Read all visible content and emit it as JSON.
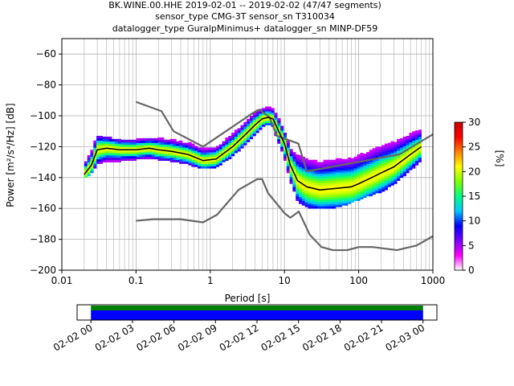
{
  "chart_data": [
    {
      "type": "heatmap",
      "title_lines": [
        "BK.WINE.00.HHE   2019-02-01 -- 2019-02-02  (47/47 segments)",
        "sensor_type CMG-3T sensor_sn T310034",
        "datalogger_type GuralpMinimus+ datalogger_sn MINP-DF59"
      ],
      "xlabel": "Period [s]",
      "ylabel": "Power [m²/s⁴/Hz] [dB]",
      "x_scale": "log",
      "xlim": [
        0.01,
        1000
      ],
      "ylim": [
        -200,
        -50
      ],
      "x_ticks": [
        {
          "value": 0.01,
          "label": "0.01"
        },
        {
          "value": 0.1,
          "label": "0.1"
        },
        {
          "value": 1,
          "label": "1"
        },
        {
          "value": 10,
          "label": "10"
        },
        {
          "value": 100,
          "label": "100"
        },
        {
          "value": 1000,
          "label": "1000"
        }
      ],
      "y_ticks": [
        {
          "value": -60,
          "label": "−60"
        },
        {
          "value": -80,
          "label": "−80"
        },
        {
          "value": -100,
          "label": "−100"
        },
        {
          "value": -120,
          "label": "−120"
        },
        {
          "value": -140,
          "label": "−140"
        },
        {
          "value": -160,
          "label": "−160"
        },
        {
          "value": -180,
          "label": "−180"
        },
        {
          "value": -200,
          "label": "−200"
        }
      ],
      "grid": true,
      "colorbar": {
        "label": "[%]",
        "range": [
          0,
          30
        ],
        "ticks": [
          {
            "value": 0,
            "label": "0"
          },
          {
            "value": 5,
            "label": "5"
          },
          {
            "value": 10,
            "label": "10"
          },
          {
            "value": 15,
            "label": "15"
          },
          {
            "value": 20,
            "label": "20"
          },
          {
            "value": 25,
            "label": "25"
          },
          {
            "value": 30,
            "label": "30"
          }
        ],
        "colors": [
          "#ffffff",
          "#ff00ff",
          "#7a00ff",
          "#0000ff",
          "#00c8ff",
          "#00ff80",
          "#80ff00",
          "#ffff00",
          "#ff8000",
          "#ff0000",
          "#c80000"
        ]
      },
      "mode_curve": {
        "x": [
          0.02,
          0.025,
          0.03,
          0.04,
          0.06,
          0.1,
          0.15,
          0.2,
          0.3,
          0.5,
          0.8,
          1.2,
          2,
          3,
          4,
          5,
          6,
          7,
          8,
          10,
          12,
          15,
          20,
          30,
          50,
          80,
          100,
          150,
          200,
          300,
          500,
          700
        ],
        "y": [
          -138,
          -132,
          -122,
          -121,
          -122,
          -122,
          -121,
          -122,
          -123,
          -125,
          -129,
          -128,
          -120,
          -112,
          -106,
          -102,
          -101,
          -102,
          -108,
          -118,
          -132,
          -142,
          -146,
          -148,
          -147,
          -146,
          -144,
          -140,
          -137,
          -133,
          -125,
          -120
        ]
      },
      "nlnm_curve": {
        "x": [
          0.1,
          0.17,
          0.4,
          0.8,
          1.24,
          2.4,
          4.3,
          5,
          6,
          10,
          12,
          15.6,
          21.9,
          31.6,
          45,
          70,
          101,
          154,
          328,
          600,
          1000
        ],
        "y": [
          -168,
          -167,
          -167,
          -169,
          -164,
          -148,
          -141,
          -141,
          -150,
          -163,
          -166,
          -162,
          -177,
          -185,
          -187,
          -187,
          -185,
          -185,
          -187,
          -184,
          -178
        ]
      },
      "nhnm_curve": {
        "x": [
          0.1,
          0.22,
          0.32,
          0.8,
          3.8,
          4.6,
          6.3,
          7.9,
          15.4,
          20,
          354.8,
          1000
        ],
        "y": [
          -91,
          -97,
          -110,
          -120,
          -98,
          -96,
          -101,
          -113,
          -118,
          -136,
          -125,
          -112
        ]
      },
      "density_band": {
        "x": [
          0.02,
          0.025,
          0.03,
          0.04,
          0.06,
          0.1,
          0.15,
          0.2,
          0.3,
          0.5,
          0.8,
          1.2,
          2,
          3,
          4,
          5,
          6,
          7,
          8,
          10,
          12,
          15,
          20,
          30,
          50,
          80,
          100,
          150,
          200,
          300,
          500,
          700
        ],
        "upper": [
          -128,
          -122,
          -113,
          -114,
          -116,
          -116,
          -115,
          -115,
          -116,
          -118,
          -121,
          -120,
          -112,
          -104,
          -98,
          -95,
          -94,
          -96,
          -101,
          -110,
          -122,
          -126,
          -127,
          -127,
          -126,
          -124,
          -122,
          -120,
          -118,
          -116,
          -112,
          -110
        ],
        "lower": [
          -141,
          -138,
          -132,
          -130,
          -130,
          -129,
          -128,
          -129,
          -130,
          -132,
          -135,
          -134,
          -127,
          -119,
          -113,
          -108,
          -106,
          -108,
          -116,
          -128,
          -143,
          -156,
          -160,
          -160,
          -160,
          -157,
          -155,
          -152,
          -150,
          -145,
          -136,
          -130
        ]
      }
    },
    {
      "type": "timeline",
      "x_tick_labels": [
        "02-02 00",
        "02-02 03",
        "02-02 06",
        "02-02 09",
        "02-02 12",
        "02-02 15",
        "02-02 18",
        "02-02 21",
        "02-03 00"
      ],
      "x_range_hours": [
        -1,
        25
      ],
      "coverage_hours": [
        0,
        24
      ],
      "bar_colors": [
        "#008000",
        "#0000ff"
      ]
    }
  ]
}
